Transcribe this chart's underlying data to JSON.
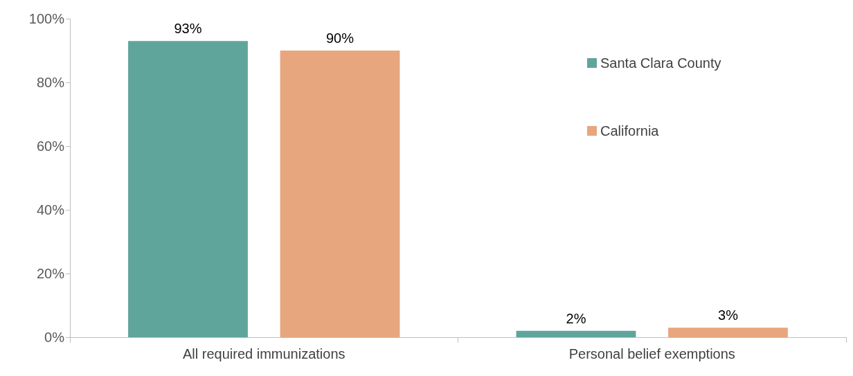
{
  "chart_data": {
    "type": "bar",
    "categories": [
      "All required immunizations",
      "Personal belief exemptions"
    ],
    "series": [
      {
        "name": "Santa Clara County",
        "color": "#5fa59c",
        "values": [
          93,
          2
        ],
        "value_labels": [
          "93%",
          "2%"
        ]
      },
      {
        "name": "California",
        "color": "#e8a67f",
        "values": [
          90,
          3
        ],
        "value_labels": [
          "90%",
          "3%"
        ]
      }
    ],
    "ylim": [
      0,
      100
    ],
    "yticks": [
      {
        "value": 0,
        "label": "0%"
      },
      {
        "value": 20,
        "label": "20%"
      },
      {
        "value": 40,
        "label": "40%"
      },
      {
        "value": 60,
        "label": "60%"
      },
      {
        "value": 80,
        "label": "80%"
      },
      {
        "value": 100,
        "label": "100%"
      }
    ],
    "grid": false,
    "legend": "top right"
  }
}
